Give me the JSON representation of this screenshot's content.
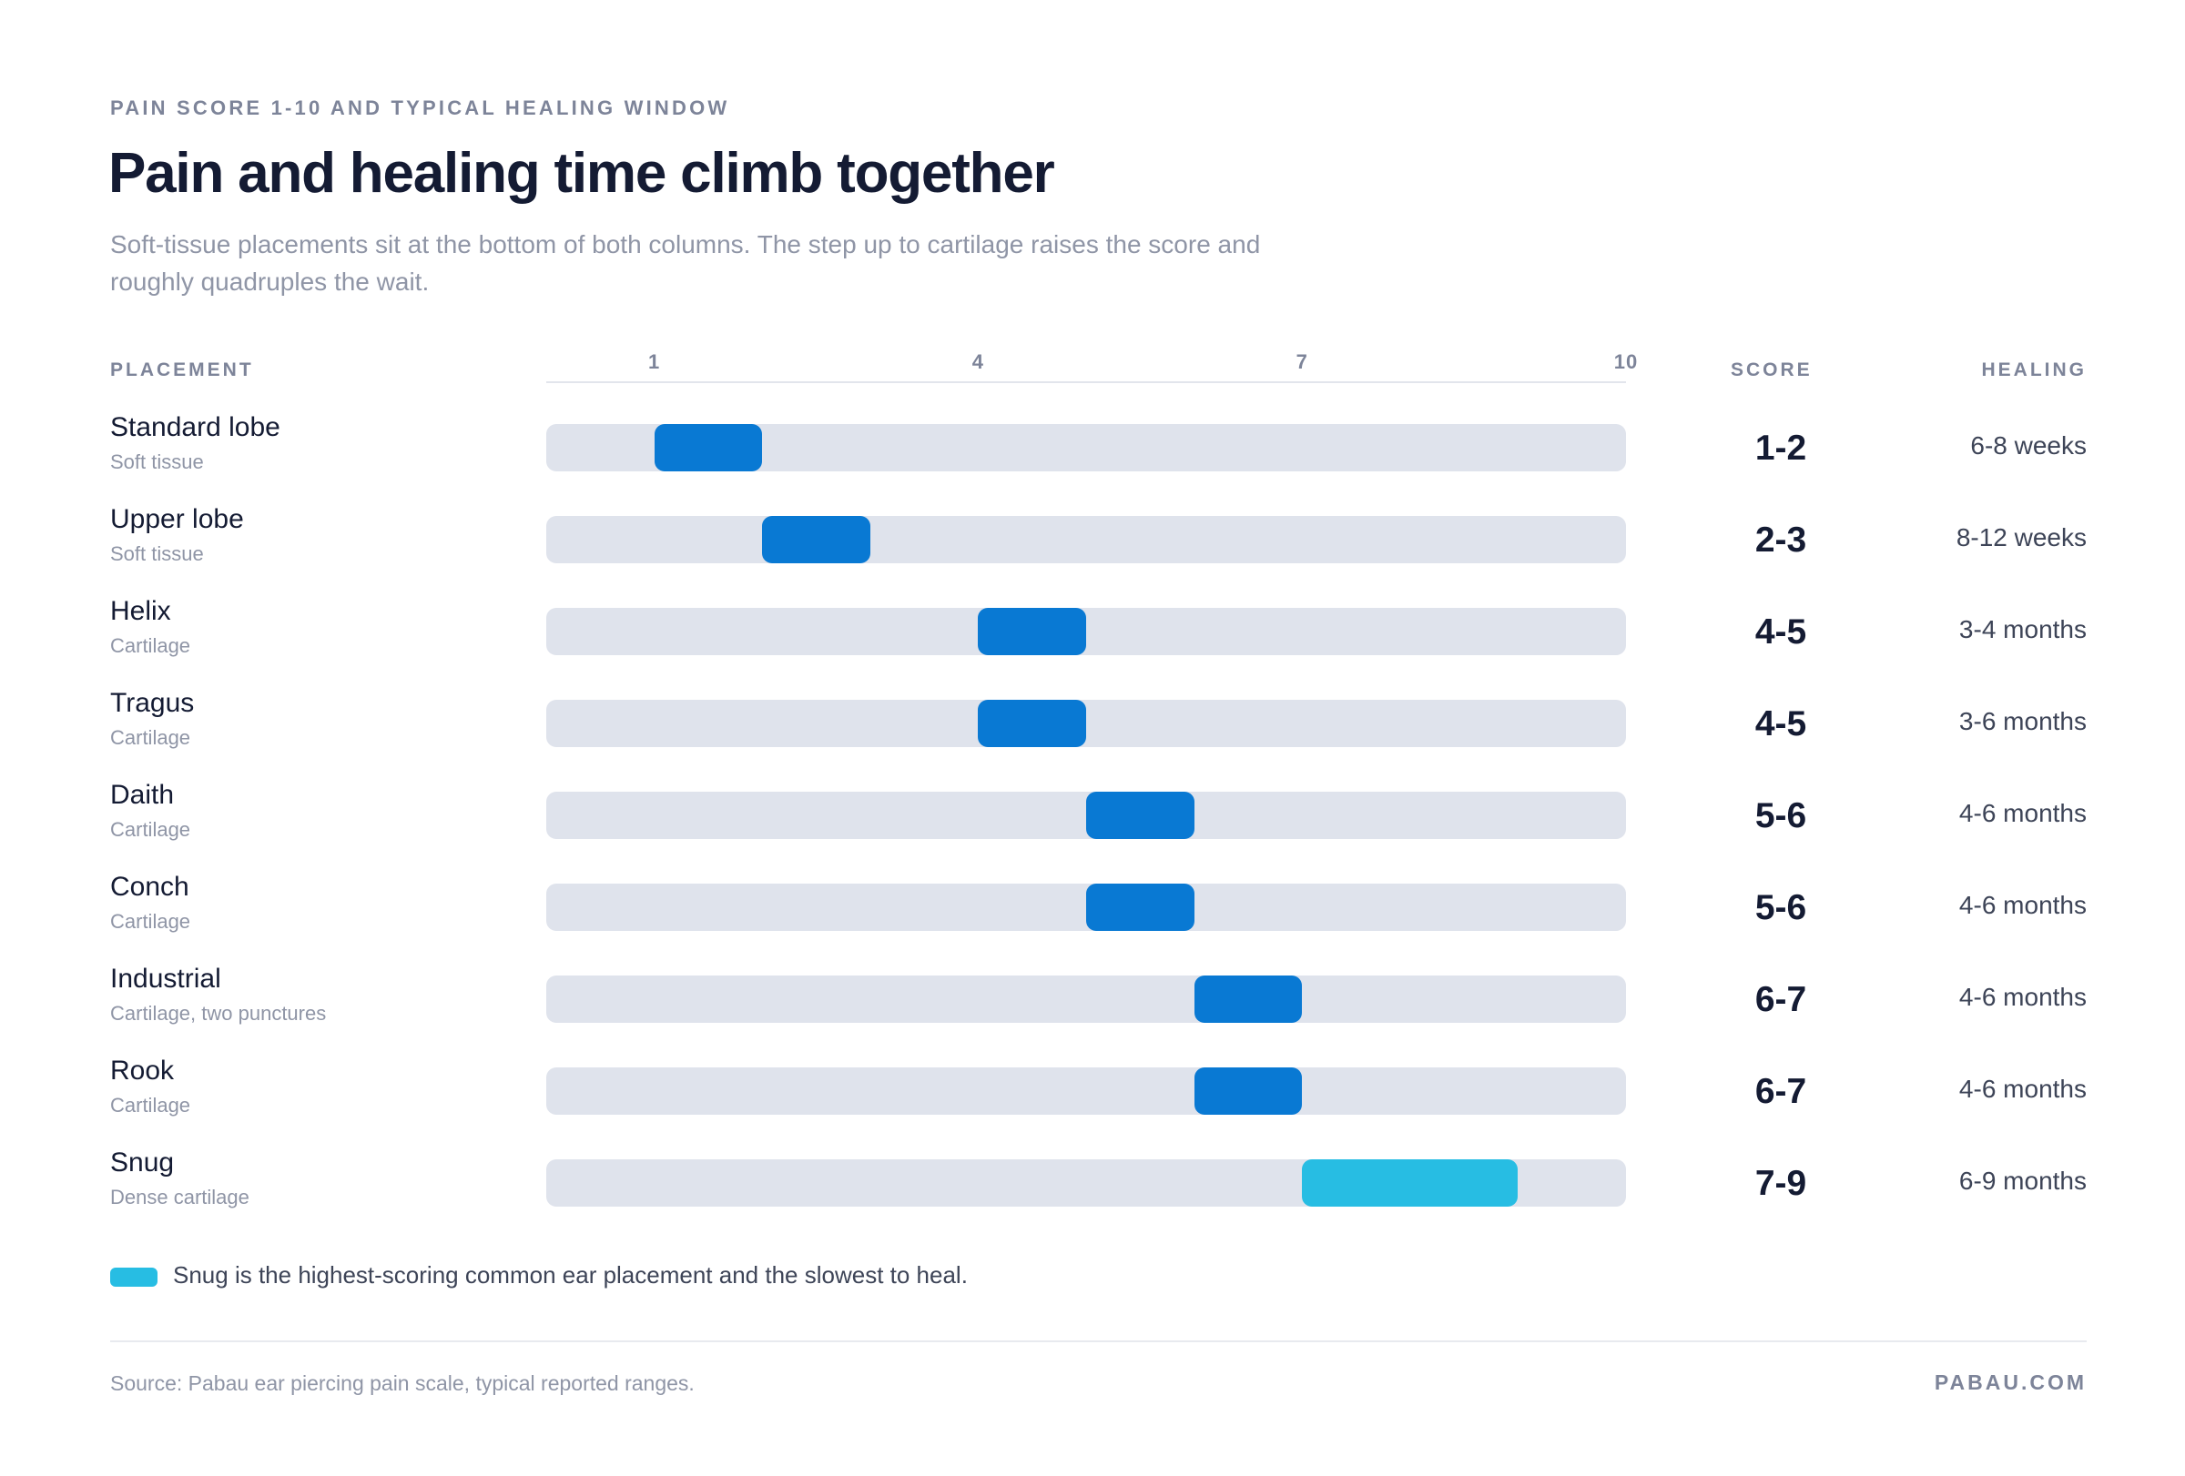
{
  "header": {
    "eyebrow": "PAIN SCORE 1-10 AND TYPICAL HEALING WINDOW",
    "title": "Pain and healing time climb together",
    "subtitle": "Soft-tissue placements sit at the bottom of both columns. The step up to cartilage raises the score and roughly quadruples the wait."
  },
  "columns": {
    "placement": "PLACEMENT",
    "score": "SCORE",
    "healing": "HEALING"
  },
  "chart_data": {
    "type": "bar",
    "subtype": "floating-range",
    "x_ticks": [
      "1",
      "4",
      "7",
      "10"
    ],
    "xlim": [
      0,
      10
    ],
    "categories": [
      "Standard lobe",
      "Upper lobe",
      "Helix",
      "Tragus",
      "Daith",
      "Conch",
      "Industrial",
      "Rook",
      "Snug"
    ],
    "rows": [
      {
        "name": "Standard lobe",
        "tissue": "Soft tissue",
        "low": 1,
        "high": 2,
        "score": "1-2",
        "healing": "6-8 weeks",
        "highlight": false
      },
      {
        "name": "Upper lobe",
        "tissue": "Soft tissue",
        "low": 2,
        "high": 3,
        "score": "2-3",
        "healing": "8-12 weeks",
        "highlight": false
      },
      {
        "name": "Helix",
        "tissue": "Cartilage",
        "low": 4,
        "high": 5,
        "score": "4-5",
        "healing": "3-4 months",
        "highlight": false
      },
      {
        "name": "Tragus",
        "tissue": "Cartilage",
        "low": 4,
        "high": 5,
        "score": "4-5",
        "healing": "3-6 months",
        "highlight": false
      },
      {
        "name": "Daith",
        "tissue": "Cartilage",
        "low": 5,
        "high": 6,
        "score": "5-6",
        "healing": "4-6 months",
        "highlight": false
      },
      {
        "name": "Conch",
        "tissue": "Cartilage",
        "low": 5,
        "high": 6,
        "score": "5-6",
        "healing": "4-6 months",
        "highlight": false
      },
      {
        "name": "Industrial",
        "tissue": "Cartilage, two punctures",
        "low": 6,
        "high": 7,
        "score": "6-7",
        "healing": "4-6 months",
        "highlight": false
      },
      {
        "name": "Rook",
        "tissue": "Cartilage",
        "low": 6,
        "high": 7,
        "score": "6-7",
        "healing": "4-6 months",
        "highlight": false
      },
      {
        "name": "Snug",
        "tissue": "Dense cartilage",
        "low": 7,
        "high": 9,
        "score": "7-9",
        "healing": "6-9 months",
        "highlight": true
      }
    ],
    "colors": {
      "bar": "#0979d3",
      "highlight": "#27bde3",
      "track": "#dfe3ec"
    },
    "grid": false
  },
  "legend": {
    "text": "Snug is the highest-scoring common ear placement and the slowest to heal."
  },
  "footer": {
    "source": "Source: Pabau ear piercing pain scale, typical reported ranges.",
    "brand": "PABAU.COM"
  }
}
